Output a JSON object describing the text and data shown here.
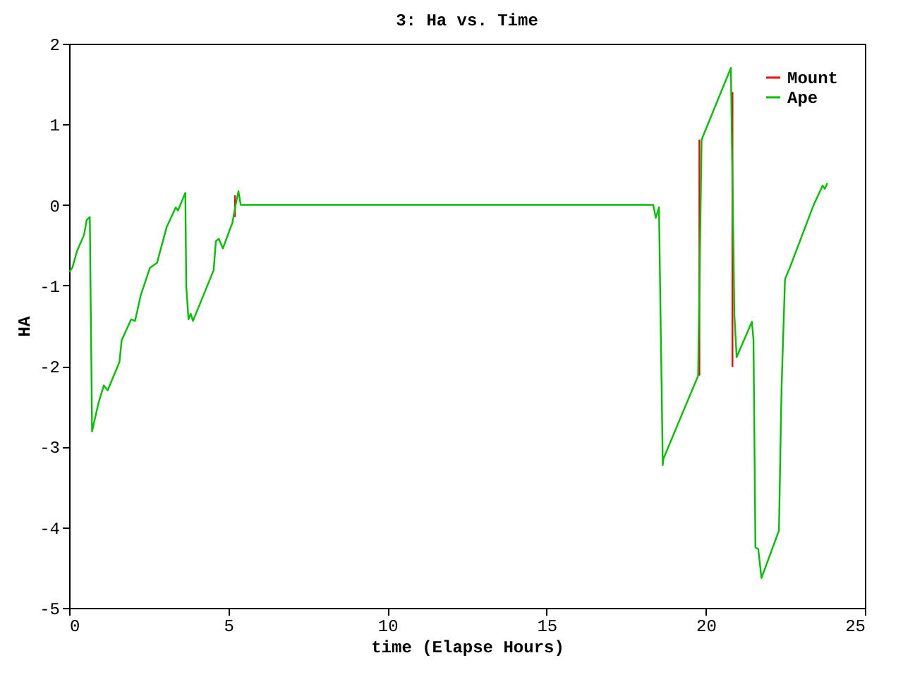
{
  "chart_data": {
    "type": "line",
    "title": "3: Ha vs. Time",
    "xlabel": "time (Elapse Hours)",
    "ylabel": "HA",
    "xlim": [
      0,
      25
    ],
    "xticks": [
      0,
      5,
      10,
      15,
      20,
      25
    ],
    "ylim": [
      -5,
      2
    ],
    "yticks": [
      -5,
      -4,
      -3,
      -2,
      -1,
      0,
      1,
      2
    ],
    "grid": false,
    "legend": "top right",
    "marker": "none",
    "line_style": "solid",
    "series": [
      {
        "name": "Mount",
        "color": "#ff0000",
        "x": [
          5.21,
          5.21,
          null,
          19.8,
          19.8,
          null,
          20.84,
          20.84
        ],
        "values": [
          -0.15,
          0.12,
          null,
          -2.12,
          0.81,
          null,
          1.4,
          -2.01
        ]
      },
      {
        "name": "Ape",
        "color": "#00c000",
        "x": [
          0,
          0.1,
          0.25,
          0.47,
          0.55,
          0.65,
          0.72,
          0.92,
          1.09,
          1.21,
          1.58,
          1.65,
          1.95,
          2.07,
          2.25,
          2.54,
          2.76,
          3.06,
          3.35,
          3.42,
          3.65,
          3.68,
          3.75,
          3.82,
          3.89,
          4.54,
          4.61,
          4.7,
          4.83,
          5.13,
          5.23,
          5.32,
          5.39,
          18.35,
          18.43,
          18.53,
          18.65,
          18.67,
          19.76,
          19.87,
          20.79,
          20.81,
          20.9,
          20.97,
          21.45,
          21.5,
          21.56,
          21.65,
          21.75,
          22.3,
          22.38,
          22.49,
          22.64,
          23.37,
          23.67,
          23.74,
          23.82
        ],
        "values": [
          -0.83,
          -0.78,
          -0.57,
          -0.37,
          -0.19,
          -0.15,
          -2.81,
          -2.46,
          -2.24,
          -2.3,
          -1.95,
          -1.68,
          -1.42,
          -1.44,
          -1.12,
          -0.78,
          -0.72,
          -0.28,
          -0.03,
          -0.07,
          0.15,
          -1.01,
          -1.42,
          -1.35,
          -1.44,
          -0.81,
          -0.45,
          -0.42,
          -0.54,
          -0.22,
          0,
          0.17,
          0,
          0,
          -0.16,
          -0.03,
          -3.23,
          -3.15,
          -2.12,
          0.81,
          1.7,
          1.09,
          -1.36,
          -1.89,
          -1.45,
          -1.68,
          -4.25,
          -4.27,
          -4.63,
          -4.04,
          -2.29,
          -0.92,
          -0.78,
          -0.02,
          0.24,
          0.2,
          0.27
        ]
      }
    ]
  }
}
